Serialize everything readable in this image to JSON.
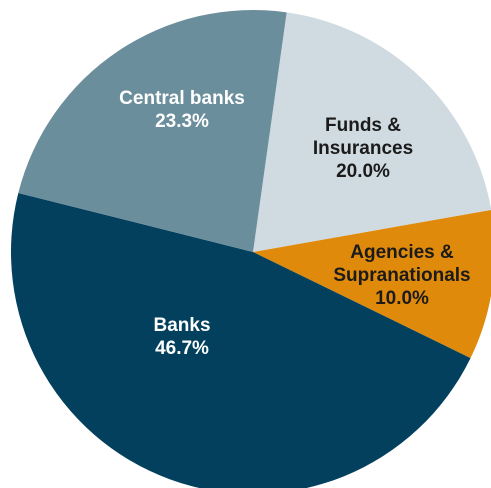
{
  "chart_data": {
    "type": "pie",
    "slices": [
      {
        "label_lines": [
          "Funds &",
          "Insurances"
        ],
        "value": 20.0,
        "value_text": "20.0%",
        "color": "#d0dbe1",
        "text_color": "#1b1b1b"
      },
      {
        "label_lines": [
          "Agencies &",
          "Supranationals"
        ],
        "value": 10.0,
        "value_text": "10.0%",
        "color": "#e08a0b",
        "text_color": "#1b1b1b"
      },
      {
        "label_lines": [
          "Banks"
        ],
        "value": 46.7,
        "value_text": "46.7%",
        "color": "#02405e",
        "text_color": "#ffffff"
      },
      {
        "label_lines": [
          "Central banks"
        ],
        "value": 23.3,
        "value_text": "23.3%",
        "color": "#6b8e9c",
        "text_color": "#ffffff"
      }
    ],
    "start_angle_deg": 8,
    "direction": "clockwise"
  }
}
